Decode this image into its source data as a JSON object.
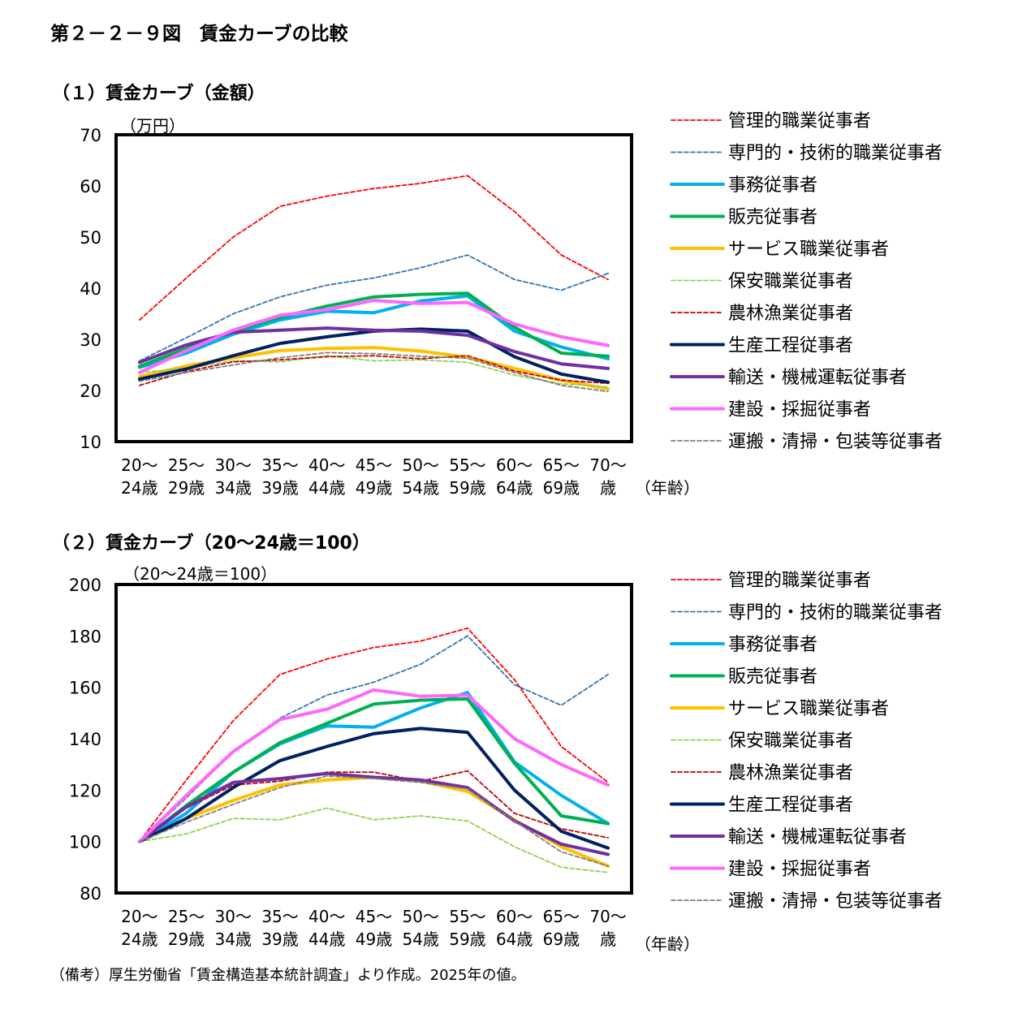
{
  "figure_title": "第２－２－９図　賃金カーブの比較",
  "note": "（備考）厚生労働省「賃金構造基本統計調査」より作成。2025年の値。",
  "series_styles": [
    {
      "color": "#FF0000",
      "dash": true
    },
    {
      "color": "#2E75B6",
      "dash": true
    },
    {
      "color": "#00B0F0",
      "dash": false
    },
    {
      "color": "#00B050",
      "dash": false
    },
    {
      "color": "#FFC000",
      "dash": false
    },
    {
      "color": "#92D050",
      "dash": true
    },
    {
      "color": "#C00000",
      "dash": true
    },
    {
      "color": "#002060",
      "dash": false
    },
    {
      "color": "#7030A0",
      "dash": false
    },
    {
      "color": "#FF66FF",
      "dash": false
    },
    {
      "color": "#7F7F7F",
      "dash": true
    }
  ],
  "chart_data": [
    {
      "type": "line",
      "title": "（１）賃金カーブ（金額）",
      "ylabel": "（万円）",
      "xlabel": "（年齢）",
      "ylim": [
        10,
        70
      ],
      "yticks": [
        10,
        20,
        30,
        40,
        50,
        60,
        70
      ],
      "categories": [
        {
          "top": "20～",
          "bottom": "24歳"
        },
        {
          "top": "25～",
          "bottom": "29歳"
        },
        {
          "top": "30～",
          "bottom": "34歳"
        },
        {
          "top": "35～",
          "bottom": "39歳"
        },
        {
          "top": "40～",
          "bottom": "44歳"
        },
        {
          "top": "45～",
          "bottom": "49歳"
        },
        {
          "top": "50～",
          "bottom": "54歳"
        },
        {
          "top": "55～",
          "bottom": "59歳"
        },
        {
          "top": "60～",
          "bottom": "64歳"
        },
        {
          "top": "65～",
          "bottom": "69歳"
        },
        {
          "top": "70～",
          "bottom": "歳"
        }
      ],
      "legend_position": "right",
      "series": [
        {
          "name": "管理的職業従事者",
          "values": [
            33.8,
            42.0,
            50.0,
            56.0,
            58.0,
            59.5,
            60.5,
            62.0,
            55.0,
            46.5,
            41.7
          ]
        },
        {
          "name": "専門的・技術的職業従事者",
          "values": [
            25.8,
            30.3,
            35.0,
            38.3,
            40.6,
            42.0,
            44.0,
            46.5,
            41.7,
            39.6,
            42.9
          ]
        },
        {
          "name": "事務従事者",
          "values": [
            24.5,
            27.3,
            31.0,
            33.8,
            35.5,
            35.2,
            37.5,
            38.5,
            31.6,
            28.5,
            26.2
          ]
        },
        {
          "name": "販売従事者",
          "values": [
            24.7,
            28.2,
            31.5,
            34.3,
            36.5,
            38.3,
            38.8,
            39.0,
            32.4,
            27.3,
            26.7
          ]
        },
        {
          "name": "サービス職業従事者",
          "values": [
            22.7,
            24.8,
            26.4,
            27.8,
            28.2,
            28.4,
            27.7,
            26.5,
            24.3,
            22.0,
            20.3
          ]
        },
        {
          "name": "保安職業従事者",
          "values": [
            23.5,
            24.3,
            25.8,
            25.6,
            26.8,
            25.8,
            26.0,
            25.5,
            23.0,
            21.3,
            20.7
          ]
        },
        {
          "name": "農林漁業従事者",
          "values": [
            21.0,
            23.7,
            25.6,
            26.0,
            26.6,
            26.8,
            26.2,
            26.8,
            23.8,
            22.0,
            21.4
          ]
        },
        {
          "name": "生産工程従事者",
          "values": [
            22.2,
            24.2,
            26.8,
            29.2,
            30.5,
            31.6,
            32.0,
            31.6,
            26.6,
            23.2,
            21.6
          ]
        },
        {
          "name": "輸送・機械運転従事者",
          "values": [
            25.5,
            28.9,
            31.4,
            31.8,
            32.2,
            31.8,
            31.6,
            30.8,
            27.6,
            25.2,
            24.3
          ]
        },
        {
          "name": "建設・採掘従事者",
          "values": [
            23.5,
            27.8,
            31.8,
            34.7,
            35.8,
            37.6,
            37.0,
            37.2,
            33.0,
            30.5,
            28.8
          ]
        },
        {
          "name": "運搬・清掃・包装等従事者",
          "values": [
            21.8,
            23.5,
            25.0,
            26.4,
            27.4,
            27.2,
            26.7,
            26.3,
            23.5,
            21.0,
            19.8
          ]
        }
      ]
    },
    {
      "type": "line",
      "title": "（２）賃金カーブ（20～24歳＝100）",
      "ylabel": "（20～24歳＝100）",
      "xlabel": "（年齢）",
      "ylim": [
        80,
        200
      ],
      "yticks": [
        80,
        100,
        120,
        140,
        160,
        180,
        200
      ],
      "categories": [
        {
          "top": "20～",
          "bottom": "24歳"
        },
        {
          "top": "25～",
          "bottom": "29歳"
        },
        {
          "top": "30～",
          "bottom": "34歳"
        },
        {
          "top": "35～",
          "bottom": "39歳"
        },
        {
          "top": "40～",
          "bottom": "44歳"
        },
        {
          "top": "45～",
          "bottom": "49歳"
        },
        {
          "top": "50～",
          "bottom": "54歳"
        },
        {
          "top": "55～",
          "bottom": "59歳"
        },
        {
          "top": "60～",
          "bottom": "64歳"
        },
        {
          "top": "65～",
          "bottom": "69歳"
        },
        {
          "top": "70～",
          "bottom": "歳"
        }
      ],
      "legend_position": "right",
      "series": [
        {
          "name": "管理的職業従事者",
          "values": [
            100,
            124,
            147,
            165,
            171,
            175.5,
            178,
            183,
            163,
            137,
            123
          ]
        },
        {
          "name": "専門的・技術的職業従事者",
          "values": [
            100,
            117,
            135,
            148,
            157,
            162,
            169,
            180,
            161,
            153,
            165
          ]
        },
        {
          "name": "事務従事者",
          "values": [
            100,
            111,
            127,
            138,
            145,
            144.5,
            152,
            158,
            131,
            118,
            107
          ]
        },
        {
          "name": "販売従事者",
          "values": [
            100,
            114,
            127,
            138.5,
            146,
            153.5,
            155,
            155.5,
            130.5,
            110,
            107
          ]
        },
        {
          "name": "サービス職業従事者",
          "values": [
            100,
            109,
            116,
            122,
            124,
            125,
            123.5,
            119.5,
            108.5,
            98,
            90.5
          ]
        },
        {
          "name": "保安職業従事者",
          "values": [
            100,
            103,
            109,
            108.5,
            113,
            108.5,
            110,
            108,
            98,
            90,
            88
          ]
        },
        {
          "name": "農林漁業従事者",
          "values": [
            100,
            113,
            122,
            123.5,
            127,
            127,
            123.5,
            127.5,
            111,
            105,
            101.5
          ]
        },
        {
          "name": "生産工程従事者",
          "values": [
            100,
            109,
            121,
            131.5,
            137,
            142,
            144,
            142.5,
            120,
            104,
            97.5
          ]
        },
        {
          "name": "輸送・機械運転従事者",
          "values": [
            100,
            113.5,
            123,
            124.5,
            126.5,
            125,
            124,
            121,
            108,
            99,
            95
          ]
        },
        {
          "name": "建設・採掘従事者",
          "values": [
            100,
            118,
            135,
            147.5,
            151.5,
            159,
            156.5,
            157,
            140,
            130,
            122
          ]
        },
        {
          "name": "運搬・清掃・包装等従事者",
          "values": [
            100,
            107.5,
            114.5,
            121,
            125.5,
            124.5,
            123,
            120.5,
            108,
            96,
            90.5
          ]
        }
      ]
    }
  ]
}
